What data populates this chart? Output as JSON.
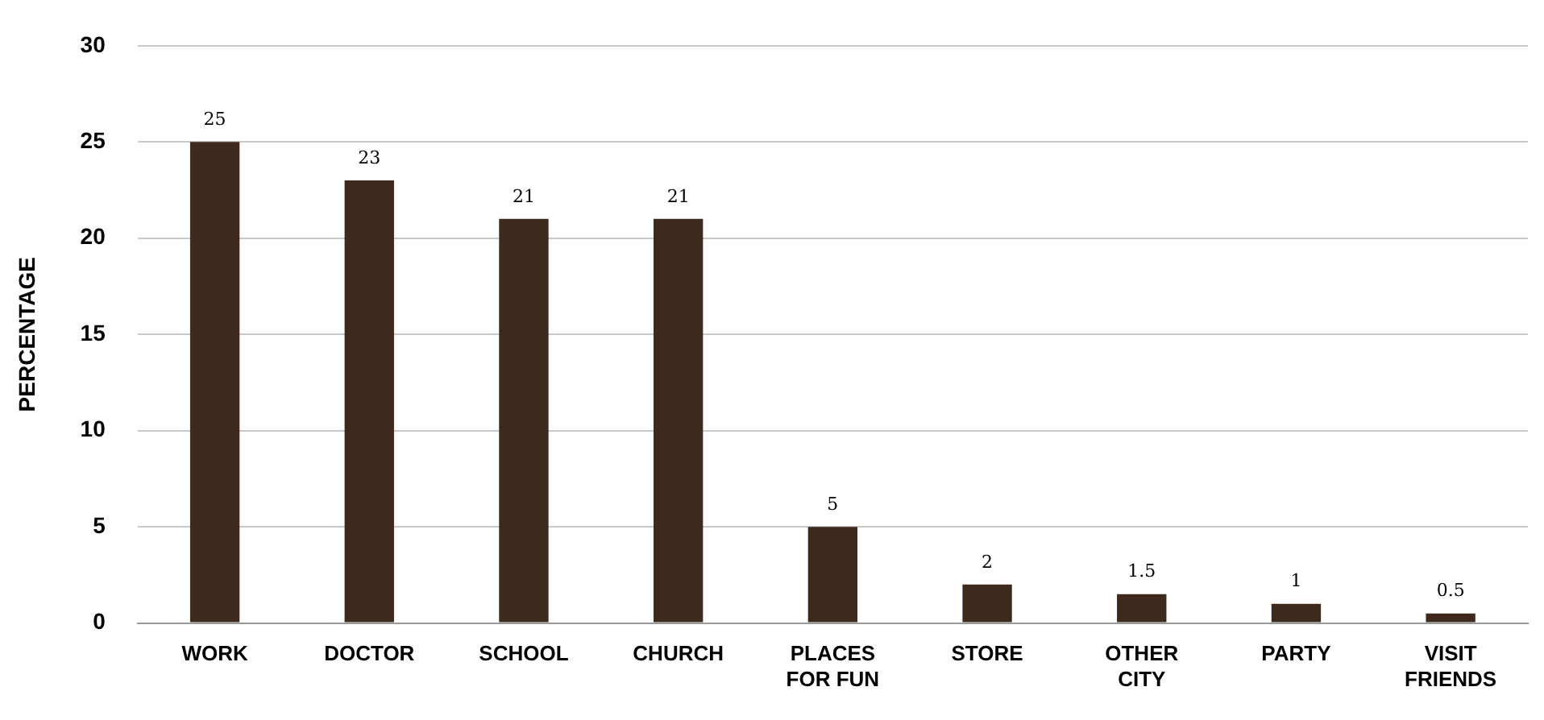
{
  "chart_data": {
    "type": "bar",
    "ylabel": "PERCENTAGE",
    "categories": [
      "WORK",
      "DOCTOR",
      "SCHOOL",
      "CHURCH",
      "PLACES FOR FUN",
      "STORE",
      "OTHER CITY",
      "PARTY",
      "VISIT FRIENDS"
    ],
    "values": [
      25,
      23,
      21,
      21,
      5,
      2,
      1.5,
      1,
      0.5
    ],
    "color": "#3d2a1c",
    "ylim": [
      0,
      30
    ],
    "yticks": [
      0,
      5,
      10,
      15,
      20,
      25,
      30
    ],
    "grid": "y",
    "data_labels": true
  }
}
